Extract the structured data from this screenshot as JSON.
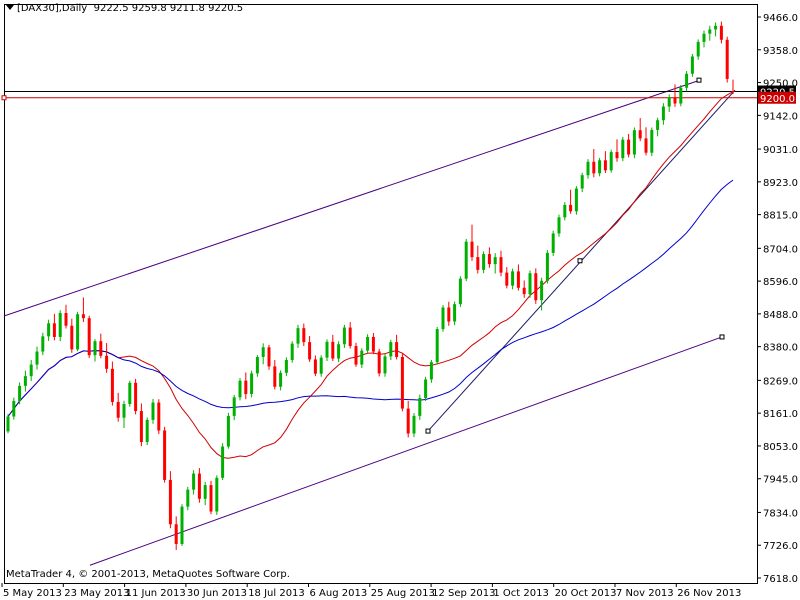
{
  "header": {
    "symbol_label": "[DAX30],Daily",
    "ohlc_text": "9222.5 9259.8 9211.8 9220.5"
  },
  "footer": {
    "copyright": "MetaTrader 4, © 2001-2013, MetaQuotes Software Corp."
  },
  "colors": {
    "background": "#ffffff",
    "bull_candle": "#00b000",
    "bear_candle": "#ff0000",
    "ma_fast": "#d00000",
    "ma_slow": "#0000cc",
    "channel": "#4b0082",
    "price_line": "#000000",
    "alert_line": "#cc0000"
  },
  "chart_data": {
    "type": "candlestick",
    "instrument": "DAX30",
    "timeframe": "Daily",
    "last_ohlc": {
      "open": 9222.5,
      "high": 9259.8,
      "low": 9211.8,
      "close": 9220.5
    },
    "y_ticks": [
      9466.0,
      9358.0,
      9250.0,
      9142.0,
      9031.0,
      8923.0,
      8815.0,
      8704.0,
      8596.0,
      8488.0,
      8380.0,
      8269.0,
      8161.0,
      8053.0,
      7945.0,
      7834.0,
      7726.0,
      7618.0
    ],
    "ylim": [
      7618,
      9520
    ],
    "x_ticks": [
      "5 May 2013",
      "23 May 2013",
      "11 Jun 2013",
      "30 Jun 2013",
      "18 Jul 2013",
      "6 Aug 2013",
      "25 Aug 2013",
      "12 Sep 2013",
      "1 Oct 2013",
      "20 Oct 2013",
      "7 Nov 2013",
      "26 Nov 2013"
    ],
    "price_labels": [
      {
        "text": "9220.5",
        "value": 9220.5,
        "kind": "current"
      },
      {
        "text": "9200.0",
        "value": 9200.0,
        "kind": "alert"
      }
    ],
    "candles": [
      [
        8101,
        8158,
        8095,
        8150
      ],
      [
        8150,
        8212,
        8140,
        8201
      ],
      [
        8201,
        8262,
        8190,
        8251
      ],
      [
        8251,
        8301,
        8232,
        8283
      ],
      [
        8283,
        8336,
        8267,
        8321
      ],
      [
        8321,
        8380,
        8305,
        8364
      ],
      [
        8364,
        8426,
        8352,
        8414
      ],
      [
        8414,
        8469,
        8399,
        8457
      ],
      [
        8457,
        8488,
        8401,
        8412
      ],
      [
        8412,
        8500,
        8398,
        8491
      ],
      [
        8491,
        8518,
        8440,
        8449
      ],
      [
        8449,
        8472,
        8360,
        8371
      ],
      [
        8371,
        8495,
        8365,
        8487
      ],
      [
        8487,
        8542,
        8461,
        8474
      ],
      [
        8474,
        8482,
        8343,
        8352
      ],
      [
        8352,
        8405,
        8331,
        8398
      ],
      [
        8398,
        8423,
        8342,
        8350
      ],
      [
        8350,
        8392,
        8294,
        8307
      ],
      [
        8307,
        8331,
        8186,
        8198
      ],
      [
        8198,
        8228,
        8133,
        8146
      ],
      [
        8146,
        8202,
        8112,
        8191
      ],
      [
        8191,
        8268,
        8182,
        8261
      ],
      [
        8261,
        8274,
        8157,
        8168
      ],
      [
        8168,
        8193,
        8052,
        8066
      ],
      [
        8066,
        8147,
        8056,
        8139
      ],
      [
        8139,
        8208,
        8126,
        8196
      ],
      [
        8196,
        8207,
        8092,
        8104
      ],
      [
        8104,
        8116,
        7932,
        7941
      ],
      [
        7941,
        7970,
        7782,
        7795
      ],
      [
        7795,
        7821,
        7710,
        7730
      ],
      [
        7730,
        7861,
        7724,
        7853
      ],
      [
        7853,
        7918,
        7841,
        7909
      ],
      [
        7909,
        7973,
        7893,
        7962
      ],
      [
        7962,
        7980,
        7866,
        7879
      ],
      [
        7879,
        7935,
        7858,
        7924
      ],
      [
        7924,
        7938,
        7828,
        7837
      ],
      [
        7837,
        7956,
        7826,
        7948
      ],
      [
        7948,
        8062,
        7941,
        8051
      ],
      [
        8051,
        8162,
        8044,
        8152
      ],
      [
        8152,
        8221,
        8138,
        8213
      ],
      [
        8213,
        8277,
        8203,
        8268
      ],
      [
        8268,
        8295,
        8207,
        8224
      ],
      [
        8224,
        8301,
        8213,
        8292
      ],
      [
        8292,
        8352,
        8281,
        8346
      ],
      [
        8346,
        8391,
        8322,
        8378
      ],
      [
        8378,
        8386,
        8304,
        8315
      ],
      [
        8315,
        8336,
        8239,
        8248
      ],
      [
        8248,
        8302,
        8236,
        8294
      ],
      [
        8294,
        8345,
        8283,
        8336
      ],
      [
        8336,
        8398,
        8327,
        8390
      ],
      [
        8390,
        8452,
        8376,
        8441
      ],
      [
        8441,
        8456,
        8382,
        8395
      ],
      [
        8395,
        8415,
        8330,
        8338
      ],
      [
        8338,
        8351,
        8283,
        8291
      ],
      [
        8291,
        8352,
        8281,
        8344
      ],
      [
        8344,
        8404,
        8333,
        8396
      ],
      [
        8396,
        8419,
        8333,
        8341
      ],
      [
        8341,
        8398,
        8329,
        8388
      ],
      [
        8388,
        8452,
        8376,
        8443
      ],
      [
        8443,
        8461,
        8374,
        8382
      ],
      [
        8382,
        8393,
        8314,
        8321
      ],
      [
        8321,
        8375,
        8310,
        8367
      ],
      [
        8367,
        8421,
        8358,
        8412
      ],
      [
        8412,
        8425,
        8355,
        8364
      ],
      [
        8364,
        8373,
        8282,
        8292
      ],
      [
        8292,
        8356,
        8281,
        8348
      ],
      [
        8348,
        8403,
        8336,
        8395
      ],
      [
        8395,
        8419,
        8338,
        8346
      ],
      [
        8346,
        8359,
        8167,
        8176
      ],
      [
        8176,
        8201,
        8081,
        8094
      ],
      [
        8094,
        8161,
        8082,
        8152
      ],
      [
        8152,
        8222,
        8139,
        8211
      ],
      [
        8211,
        8281,
        8201,
        8272
      ],
      [
        8272,
        8336,
        8261,
        8329
      ],
      [
        8329,
        8445,
        8322,
        8438
      ],
      [
        8438,
        8517,
        8429,
        8509
      ],
      [
        8509,
        8528,
        8449,
        8463
      ],
      [
        8463,
        8529,
        8451,
        8520
      ],
      [
        8520,
        8612,
        8511,
        8604
      ],
      [
        8604,
        8735,
        8596,
        8726
      ],
      [
        8726,
        8782,
        8663,
        8675
      ],
      [
        8675,
        8713,
        8621,
        8633
      ],
      [
        8633,
        8694,
        8622,
        8685
      ],
      [
        8685,
        8707,
        8640,
        8652
      ],
      [
        8652,
        8688,
        8621,
        8675
      ],
      [
        8675,
        8696,
        8612,
        8624
      ],
      [
        8624,
        8642,
        8572,
        8581
      ],
      [
        8581,
        8637,
        8569,
        8628
      ],
      [
        8628,
        8651,
        8565,
        8574
      ],
      [
        8574,
        8598,
        8541,
        8553
      ],
      [
        8553,
        8631,
        8541,
        8622
      ],
      [
        8622,
        8638,
        8521,
        8533
      ],
      [
        8533,
        8607,
        8499,
        8597
      ],
      [
        8597,
        8698,
        8588,
        8689
      ],
      [
        8689,
        8762,
        8679,
        8753
      ],
      [
        8753,
        8815,
        8742,
        8806
      ],
      [
        8806,
        8856,
        8796,
        8847
      ],
      [
        8847,
        8897,
        8818,
        8826
      ],
      [
        8826,
        8909,
        8815,
        8901
      ],
      [
        8901,
        8953,
        8889,
        8945
      ],
      [
        8945,
        8998,
        8933,
        8989
      ],
      [
        8989,
        9031,
        8938,
        8951
      ],
      [
        8951,
        9002,
        8941,
        8994
      ],
      [
        8994,
        9024,
        8952,
        8961
      ],
      [
        8961,
        9029,
        8953,
        9021
      ],
      [
        9021,
        9063,
        8989,
        9001
      ],
      [
        9001,
        9071,
        8991,
        9062
      ],
      [
        9062,
        9081,
        9004,
        9013
      ],
      [
        9013,
        9102,
        9001,
        9093
      ],
      [
        9093,
        9133,
        9057,
        9066
      ],
      [
        9066,
        9103,
        9010,
        9019
      ],
      [
        9019,
        9102,
        9008,
        9094
      ],
      [
        9094,
        9134,
        9073,
        9126
      ],
      [
        9126,
        9182,
        9111,
        9171
      ],
      [
        9171,
        9211,
        9153,
        9202
      ],
      [
        9202,
        9244,
        9170,
        9181
      ],
      [
        9181,
        9242,
        9172,
        9233
      ],
      [
        9233,
        9288,
        9221,
        9279
      ],
      [
        9279,
        9344,
        9269,
        9336
      ],
      [
        9336,
        9392,
        9325,
        9384
      ],
      [
        9384,
        9421,
        9366,
        9411
      ],
      [
        9411,
        9437,
        9388,
        9425
      ],
      [
        9425,
        9448,
        9402,
        9437
      ],
      [
        9437,
        9451,
        9379,
        9391
      ],
      [
        9391,
        9401,
        9250,
        9262
      ],
      [
        9222.5,
        9259.8,
        9211.8,
        9220.5
      ]
    ],
    "indicators": [
      {
        "type": "moving_average",
        "period": 20,
        "color": "#d00000"
      },
      {
        "type": "moving_average",
        "period": 50,
        "color": "#0000cc"
      }
    ]
  }
}
